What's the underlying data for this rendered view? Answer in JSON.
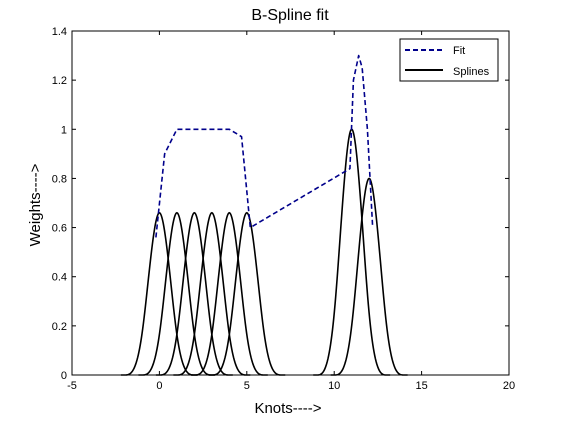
{
  "chart_data": {
    "type": "line",
    "title": "B-Spline fit",
    "xlabel": "Knots---->",
    "ylabel": "Weights---->",
    "xlim": [
      -5,
      20
    ],
    "ylim": [
      0,
      1.4
    ],
    "xticks": [
      -5,
      0,
      5,
      10,
      15,
      20
    ],
    "yticks": [
      0,
      0.2,
      0.4,
      0.6,
      0.8,
      1,
      1.2,
      1.4
    ],
    "xtick_labels": [
      "-5",
      "0",
      "5",
      "10",
      "15",
      "20"
    ],
    "ytick_labels": [
      "0",
      "0.2",
      "0.4",
      "0.6",
      "0.8",
      "1",
      "1.2",
      "1.4"
    ],
    "grid": false,
    "legend": {
      "placement": "top-right",
      "entries": [
        "Fit",
        "Splines"
      ]
    },
    "colors": {
      "fit": "#00008b",
      "splines": "#000000"
    },
    "series": [
      {
        "name": "Fit",
        "style": "dashed",
        "x": [
          -0.2,
          0.3,
          1,
          2,
          3,
          4,
          4.7,
          5.2,
          10.9,
          11.1,
          11.4,
          11.6,
          11.9,
          12.2
        ],
        "values": [
          0.56,
          0.9,
          1.0,
          1.0,
          1.0,
          1.0,
          0.97,
          0.6,
          0.84,
          1.2,
          1.3,
          1.25,
          1.0,
          0.6
        ]
      },
      {
        "name": "Splines",
        "style": "solid",
        "components": [
          {
            "center": 0,
            "peak": 0.66
          },
          {
            "center": 1,
            "peak": 0.66
          },
          {
            "center": 2,
            "peak": 0.66
          },
          {
            "center": 3,
            "peak": 0.66
          },
          {
            "center": 4,
            "peak": 0.66
          },
          {
            "center": 5,
            "peak": 0.66
          },
          {
            "center": 11,
            "peak": 1.0
          },
          {
            "center": 12,
            "peak": 0.8
          }
        ],
        "support_halfwidth": 2
      }
    ]
  }
}
